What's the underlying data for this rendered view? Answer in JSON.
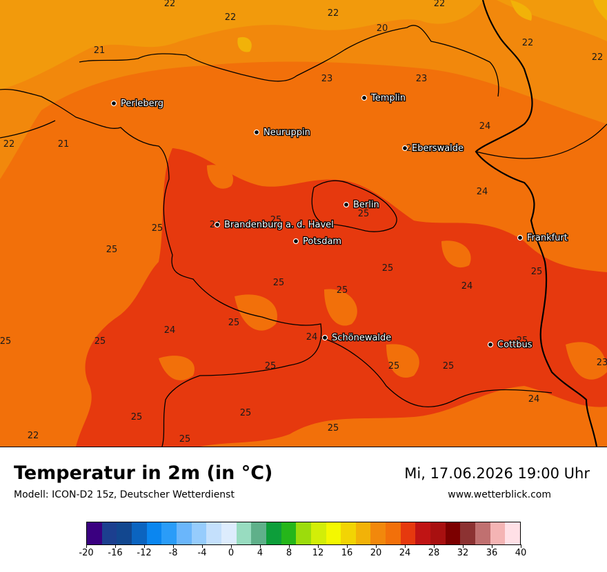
{
  "header": {
    "title": "Temperatur in 2m (in °C)",
    "subtitle": "Modell: ICON-D2 15z, Deutscher Wetterdienst",
    "datetime": "Mi, 17.06.2026 19:00 Uhr",
    "website": "www.wetterblick.com"
  },
  "cities": [
    {
      "name": "Perleberg"
    },
    {
      "name": "Templin"
    },
    {
      "name": "Neuruppin"
    },
    {
      "name": "Eberswalde"
    },
    {
      "name": "Berlin"
    },
    {
      "name": "Brandenburg a. d. Havel"
    },
    {
      "name": "Potsdam"
    },
    {
      "name": "Frankfurt"
    },
    {
      "name": "Schönewalde"
    },
    {
      "name": "Cottbus"
    }
  ],
  "temperature_labels": [
    "22",
    "22",
    "22",
    "22",
    "20",
    "21",
    "23",
    "23",
    "22",
    "22",
    "21",
    "22",
    "24",
    "24",
    "25",
    "25",
    "25",
    "24",
    "25",
    "25",
    "25",
    "25",
    "25",
    "24",
    "25",
    "25",
    "24",
    "25",
    "25",
    "24",
    "25",
    "25",
    "25",
    "25",
    "23",
    "22",
    "25",
    "25",
    "25",
    "25",
    "24"
  ],
  "colorbar": {
    "colors": [
      "#3a0080",
      "#1c3f8f",
      "#12478f",
      "#0b64c0",
      "#0a86f0",
      "#2a9cf8",
      "#6ab6fb",
      "#96ccfc",
      "#c4e0fc",
      "#ddecfd",
      "#98dcc0",
      "#5fb08a",
      "#0d9e3a",
      "#25b61a",
      "#9cdc0c",
      "#d2ee08",
      "#f4f800",
      "#f2d404",
      "#f2b208",
      "#f2880c",
      "#f2700a",
      "#e6390e",
      "#c01414",
      "#a81010",
      "#7c0000",
      "#8c3232",
      "#c07070",
      "#f4b4b4",
      "#ffe0e6"
    ],
    "tick_labels": [
      "-20",
      "-16",
      "-12",
      "-8",
      "-4",
      "0",
      "4",
      "8",
      "12",
      "16",
      "20",
      "24",
      "28",
      "32",
      "36",
      "40"
    ]
  }
}
